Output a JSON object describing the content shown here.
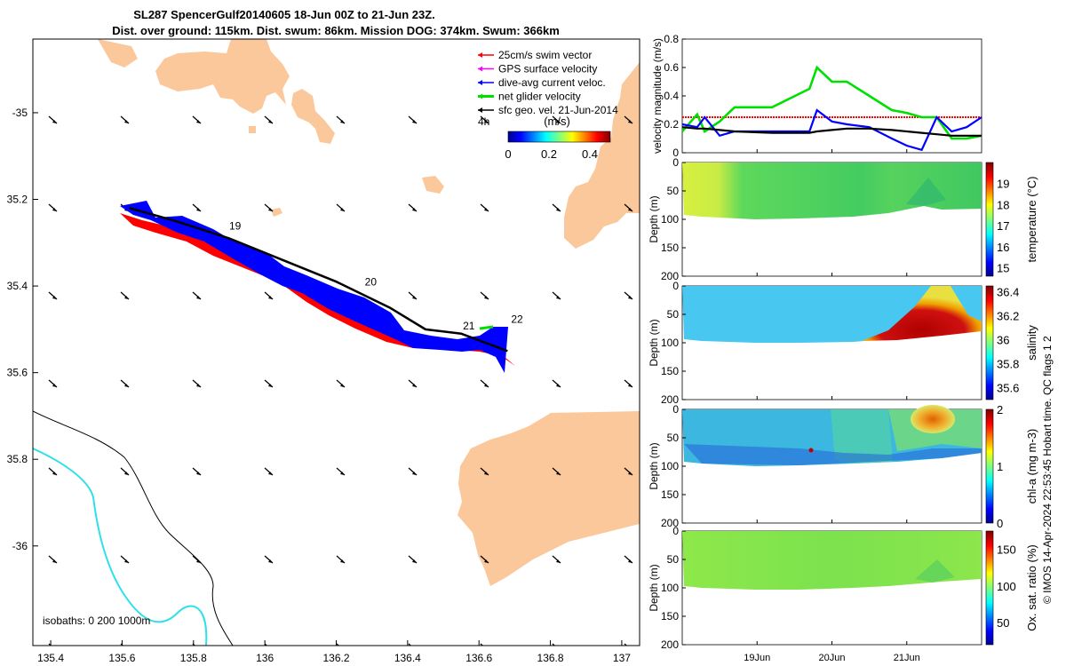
{
  "title": {
    "line1": "SL287 SpencerGulf20140605 18-Jun 00Z to 21-Jun 23Z.",
    "line2": "Dist. over ground: 115km. Dist. swum: 86km. Mission DOG: 374km. Swum: 366km"
  },
  "footer": "© IMOS 14-Apr-2024 22:53:45 Hobart time. QC flags 1  2",
  "colors": {
    "land": "#fac89b",
    "swim": "#ff0000",
    "gps": "#ff00ff",
    "diveavg": "#0000ff",
    "net": "#00e000",
    "geo": "#000000",
    "isobath200": "#000000",
    "isobath1000": "#30e0e8"
  },
  "map": {
    "legend": [
      {
        "key": "swim",
        "label": "25cm/s swim vector"
      },
      {
        "key": "gps",
        "label": "GPS surface velocity"
      },
      {
        "key": "diveavg",
        "label": "dive-avg current veloc."
      },
      {
        "key": "net",
        "label": "net glider velocity"
      },
      {
        "key": "geo",
        "label": "sfc geo. vel. 21-Jun-2014"
      }
    ],
    "interval_label": "4h",
    "colorbar": {
      "label": "(m/s)",
      "ticks": [
        "0",
        "0.2",
        "0.4"
      ],
      "min": 0,
      "max": 0.5
    },
    "lon_ticks": [
      "135.4",
      "135.6",
      "135.8",
      "136",
      "136.2",
      "136.4",
      "136.6",
      "136.8",
      "137"
    ],
    "lat_ticks": [
      "-35",
      "35.2",
      "35.4",
      "35.6",
      "35.8",
      "-36"
    ],
    "day_labels": [
      {
        "text": "19",
        "lon": 135.9,
        "lat": -35.27
      },
      {
        "text": "20",
        "lon": 136.28,
        "lat": -35.399
      },
      {
        "text": "21",
        "lon": 136.555,
        "lat": -35.5
      },
      {
        "text": "22",
        "lon": 136.69,
        "lat": -35.485
      }
    ],
    "isobath_label": "isobaths: 0   200  1000m",
    "track": [
      {
        "lon": 135.62,
        "lat": -35.22
      },
      {
        "lon": 135.75,
        "lat": -35.25
      },
      {
        "lon": 135.9,
        "lat": -35.29
      },
      {
        "lon": 136.05,
        "lat": -35.34
      },
      {
        "lon": 136.2,
        "lat": -35.39
      },
      {
        "lon": 136.35,
        "lat": -35.45
      },
      {
        "lon": 136.45,
        "lat": -35.5
      },
      {
        "lon": 136.55,
        "lat": -35.51
      },
      {
        "lon": 136.68,
        "lat": -35.55
      }
    ]
  },
  "chart_data": [
    {
      "type": "line",
      "panel": "velocity",
      "ylabel": "velocity magnitude (m/s)",
      "ylim": [
        0,
        0.8
      ],
      "yticks": [
        0,
        0.2,
        0.4,
        0.6,
        0.8
      ],
      "x_days": [
        0,
        0.2,
        0.3,
        0.5,
        0.7,
        1.2,
        1.7,
        1.8,
        2.0,
        2.2,
        2.5,
        2.8,
        3.0,
        3.2,
        3.4,
        3.6,
        3.8,
        4.0
      ],
      "series": [
        {
          "key": "swim",
          "values": [
            0.25,
            0.25,
            0.25,
            0.25,
            0.25,
            0.25,
            0.25,
            0.25,
            0.25,
            0.25,
            0.25,
            0.25,
            0.25,
            0.25,
            0.25,
            0.25,
            0.25,
            0.25
          ]
        },
        {
          "key": "net",
          "values": [
            0.15,
            0.27,
            0.15,
            0.22,
            0.32,
            0.32,
            0.45,
            0.6,
            0.5,
            0.5,
            0.4,
            0.3,
            0.28,
            0.25,
            0.25,
            0.1,
            0.1,
            0.12
          ]
        },
        {
          "key": "diveavg",
          "values": [
            0.2,
            0.18,
            0.25,
            0.12,
            0.15,
            0.15,
            0.15,
            0.3,
            0.22,
            0.2,
            0.18,
            0.1,
            0.05,
            0.02,
            0.25,
            0.15,
            0.18,
            0.25
          ]
        },
        {
          "key": "geo",
          "values": [
            0.18,
            0.17,
            0.17,
            0.16,
            0.15,
            0.14,
            0.14,
            0.15,
            0.16,
            0.17,
            0.17,
            0.16,
            0.15,
            0.14,
            0.13,
            0.12,
            0.12,
            0.12
          ]
        }
      ]
    },
    {
      "type": "heatmap",
      "panel": "temperature",
      "cbar_label": "temperature (°C)",
      "ylabel": "Depth (m)",
      "ylim": [
        200,
        0
      ],
      "yticks": [
        0,
        50,
        100,
        150,
        200
      ],
      "ctick": [
        "15",
        "16",
        "17",
        "18",
        "19"
      ],
      "crange": [
        14.6,
        20
      ]
    },
    {
      "type": "heatmap",
      "panel": "salinity",
      "cbar_label": "salinity",
      "ylabel": "Depth (m)",
      "ylim": [
        200,
        0
      ],
      "yticks": [
        0,
        50,
        100,
        150,
        200
      ],
      "ctick": [
        "35.6",
        "35.8",
        "36",
        "36.2",
        "36.4"
      ],
      "crange": [
        35.5,
        36.45
      ]
    },
    {
      "type": "heatmap",
      "panel": "chla",
      "cbar_label": "chl-a (mg m-3)",
      "ylabel": "Depth (m)",
      "ylim": [
        200,
        0
      ],
      "yticks": [
        0,
        50,
        100,
        150,
        200
      ],
      "ctick": [
        "0",
        "1",
        "2"
      ],
      "crange": [
        0,
        2
      ]
    },
    {
      "type": "heatmap",
      "panel": "oxygen",
      "cbar_label": "Ox. sat. ratio (%)",
      "ylabel": "Depth (m)",
      "ylim": [
        200,
        0
      ],
      "yticks": [
        0,
        50,
        100,
        150,
        200
      ],
      "ctick": [
        "50",
        "100",
        "150"
      ],
      "crange": [
        20,
        175
      ]
    }
  ],
  "time_ticks": [
    "19Jun",
    "20Jun",
    "21Jun"
  ]
}
